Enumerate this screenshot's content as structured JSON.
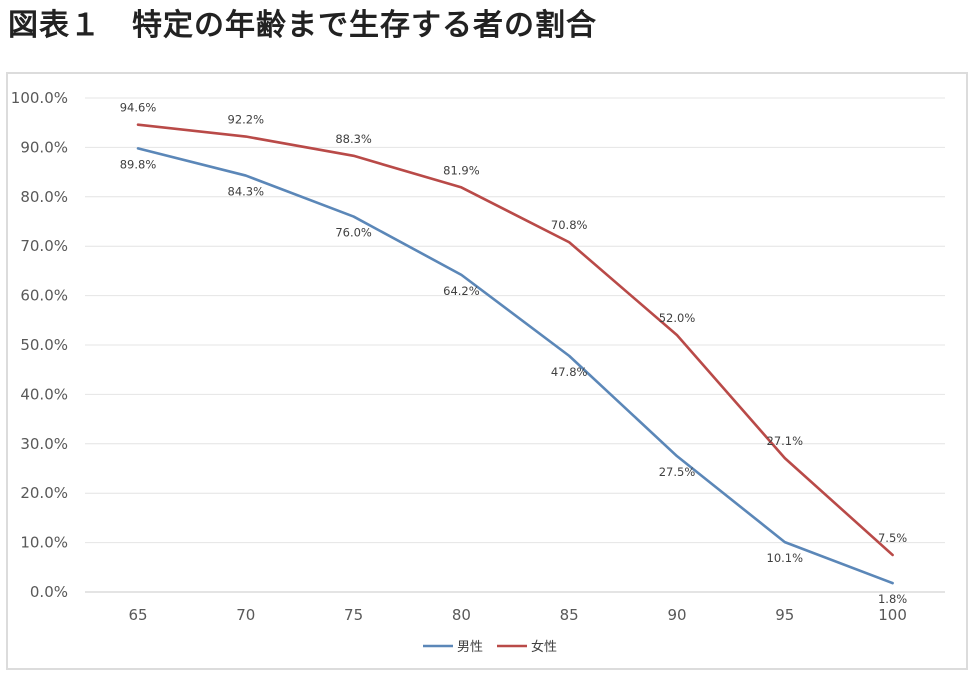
{
  "title": "図表１　特定の年齢まで生存する者の割合",
  "chart_data": {
    "type": "line",
    "title": "図表１　特定の年齢まで生存する者の割合",
    "categories": [
      "65",
      "70",
      "75",
      "80",
      "85",
      "90",
      "95",
      "100"
    ],
    "ylim": [
      0,
      100
    ],
    "yticks": [
      "0.0%",
      "10.0%",
      "20.0%",
      "30.0%",
      "40.0%",
      "50.0%",
      "60.0%",
      "70.0%",
      "80.0%",
      "90.0%",
      "100.0%"
    ],
    "grid": true,
    "legend": "bottom-center",
    "xlabel": "",
    "ylabel": "",
    "series": [
      {
        "name": "男性",
        "color": "#5b87b8",
        "values": [
          89.8,
          84.3,
          76.0,
          64.2,
          47.8,
          27.5,
          10.1,
          1.8
        ],
        "labels": [
          "89.8%",
          "84.3%",
          "76.0%",
          "64.2%",
          "47.8%",
          "27.5%",
          "10.1%",
          "1.8%"
        ]
      },
      {
        "name": "女性",
        "color": "#b94a48",
        "values": [
          94.6,
          92.2,
          88.3,
          81.9,
          70.8,
          52.0,
          27.1,
          7.5
        ],
        "labels": [
          "94.6%",
          "92.2%",
          "88.3%",
          "81.9%",
          "70.8%",
          "52.0%",
          "27.1%",
          "7.5%"
        ]
      }
    ]
  }
}
